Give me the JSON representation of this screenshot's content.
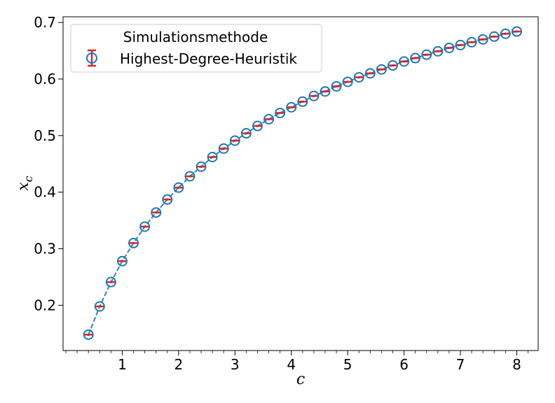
{
  "chart_data": {
    "type": "scatter",
    "xlabel": "c",
    "ylabel": "x_c",
    "xlim": [
      -0.05,
      8.38
    ],
    "ylim": [
      0.12,
      0.71
    ],
    "xticks": [
      1,
      2,
      3,
      4,
      5,
      6,
      7,
      8
    ],
    "yticks": [
      0.2,
      0.3,
      0.4,
      0.5,
      0.6,
      0.7
    ],
    "xtick_labels": [
      "1",
      "2",
      "3",
      "4",
      "5",
      "6",
      "7",
      "8"
    ],
    "ytick_labels": [
      "0.2",
      "0.3",
      "0.4",
      "0.5",
      "0.6",
      "0.7"
    ],
    "grid": false,
    "legend": {
      "title": "Simulationsmethode",
      "placement": "top-left"
    },
    "series": [
      {
        "name": "Highest-Degree-Heuristik",
        "marker": "open-circle",
        "line": "dashed",
        "error_bars": true,
        "color": "#1f77b4",
        "error_color": "#d62728",
        "x": [
          0.4,
          0.6,
          0.8,
          1.0,
          1.2,
          1.4,
          1.6,
          1.8,
          2.0,
          2.2,
          2.4,
          2.6,
          2.8,
          3.0,
          3.2,
          3.4,
          3.6,
          3.8,
          4.0,
          4.2,
          4.4,
          4.6,
          4.8,
          5.0,
          5.2,
          5.4,
          5.6,
          5.8,
          6.0,
          6.2,
          6.4,
          6.6,
          6.8,
          7.0,
          7.2,
          7.4,
          7.6,
          7.8,
          8.0
        ],
        "y": [
          0.148,
          0.198,
          0.241,
          0.278,
          0.31,
          0.339,
          0.364,
          0.387,
          0.408,
          0.428,
          0.445,
          0.462,
          0.477,
          0.491,
          0.504,
          0.517,
          0.529,
          0.54,
          0.55,
          0.56,
          0.57,
          0.578,
          0.587,
          0.595,
          0.603,
          0.61,
          0.617,
          0.624,
          0.631,
          0.637,
          0.643,
          0.649,
          0.655,
          0.66,
          0.665,
          0.67,
          0.675,
          0.68,
          0.684
        ],
        "yerr": [
          0.002,
          0.002,
          0.002,
          0.002,
          0.002,
          0.002,
          0.002,
          0.002,
          0.002,
          0.002,
          0.002,
          0.002,
          0.002,
          0.002,
          0.002,
          0.002,
          0.002,
          0.002,
          0.002,
          0.002,
          0.002,
          0.002,
          0.002,
          0.002,
          0.002,
          0.002,
          0.002,
          0.002,
          0.002,
          0.002,
          0.002,
          0.002,
          0.002,
          0.002,
          0.002,
          0.002,
          0.002,
          0.002,
          0.002
        ]
      }
    ]
  }
}
